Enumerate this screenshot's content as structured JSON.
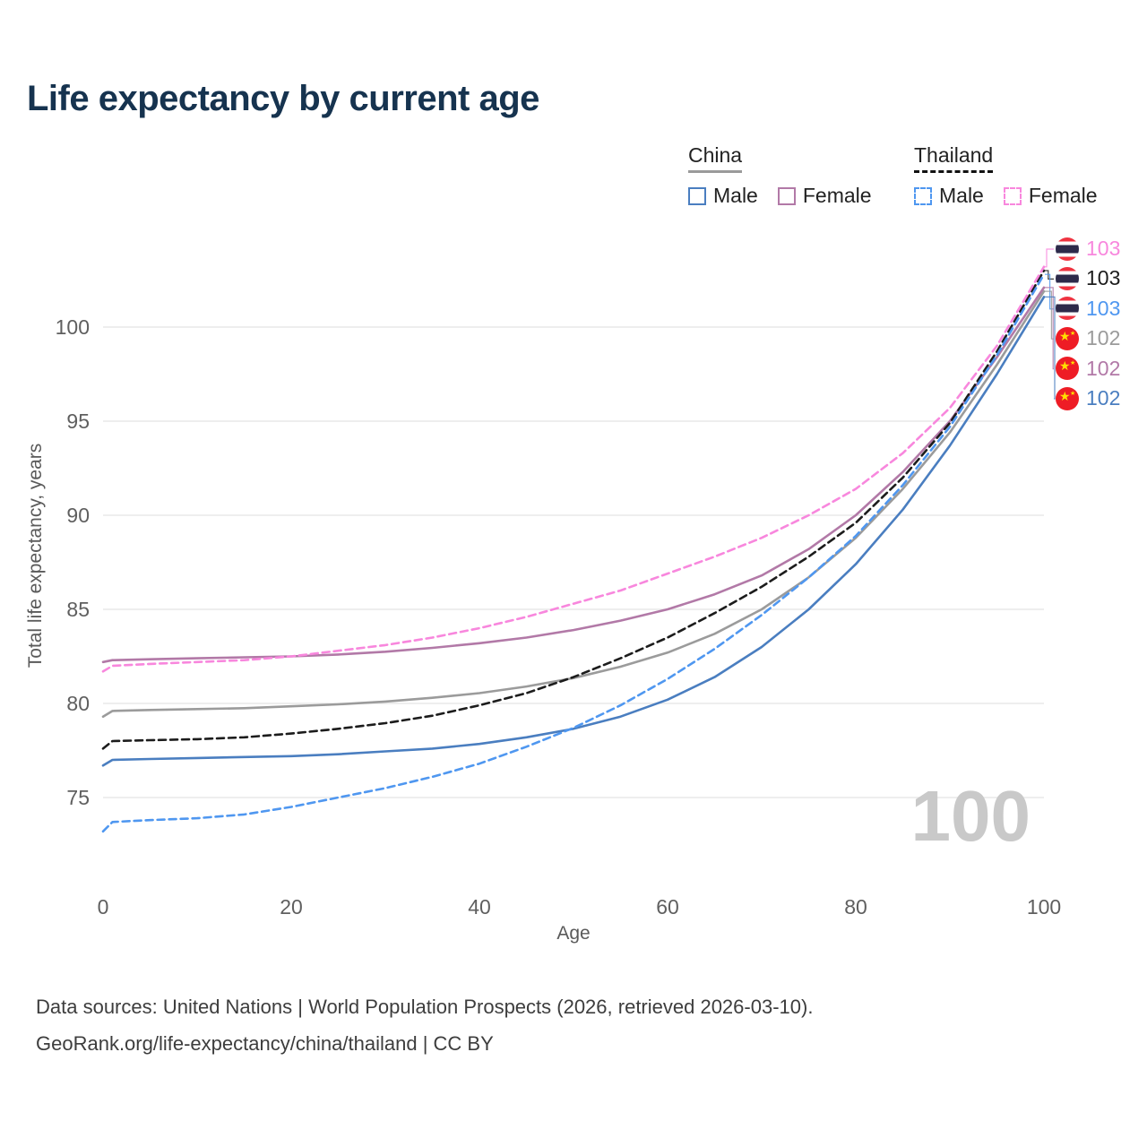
{
  "header": {
    "title": "Life expectancy by current age"
  },
  "legend": {
    "groups": [
      {
        "label": "China",
        "style": "solid",
        "indicator_color": "#9a9a9a",
        "items": [
          {
            "label": "Male",
            "color": "#4a7ec0"
          },
          {
            "label": "Female",
            "color": "#b279a7"
          }
        ]
      },
      {
        "label": "Thailand",
        "style": "dashed",
        "indicator_color": "#111111",
        "items": [
          {
            "label": "Male",
            "color": "#4f97f0"
          },
          {
            "label": "Female",
            "color": "#f887dd"
          }
        ]
      }
    ]
  },
  "chart_data": {
    "type": "line",
    "title": "Life expectancy by current age",
    "xlabel": "Age",
    "ylabel": "Total life expectancy, years",
    "xlim": [
      0,
      100
    ],
    "ylim": [
      73,
      103.5
    ],
    "x_ticks": [
      0,
      20,
      40,
      60,
      80,
      100
    ],
    "y_ticks": [
      75,
      80,
      85,
      90,
      95,
      100
    ],
    "grid": "horizontal",
    "legend_position": "top-right",
    "watermark": "100",
    "x": [
      0,
      1,
      5,
      10,
      15,
      20,
      25,
      30,
      35,
      40,
      45,
      50,
      55,
      60,
      65,
      70,
      75,
      80,
      85,
      90,
      95,
      100
    ],
    "series": [
      {
        "id": "china-total",
        "name": "China (both sexes)",
        "country": "China",
        "sex": "Both",
        "color": "#9b9b9b",
        "dash": false,
        "values": [
          79.3,
          79.6,
          79.65,
          79.7,
          79.75,
          79.85,
          79.95,
          80.1,
          80.3,
          80.55,
          80.9,
          81.35,
          81.95,
          82.7,
          83.7,
          85.0,
          86.7,
          88.8,
          91.4,
          94.4,
          98.0,
          101.9
        ]
      },
      {
        "id": "china-female",
        "name": "China Female",
        "country": "China",
        "sex": "Female",
        "color": "#b279a7",
        "dash": false,
        "values": [
          82.2,
          82.3,
          82.35,
          82.4,
          82.45,
          82.5,
          82.6,
          82.75,
          82.95,
          83.2,
          83.5,
          83.9,
          84.4,
          85.0,
          85.8,
          86.8,
          88.2,
          90.0,
          92.3,
          95.0,
          98.4,
          102.1
        ]
      },
      {
        "id": "china-male",
        "name": "China Male",
        "country": "China",
        "sex": "Male",
        "color": "#4a7ec0",
        "dash": false,
        "values": [
          76.7,
          77.0,
          77.05,
          77.1,
          77.15,
          77.2,
          77.3,
          77.45,
          77.6,
          77.85,
          78.2,
          78.65,
          79.3,
          80.2,
          81.4,
          83.0,
          85.0,
          87.4,
          90.3,
          93.7,
          97.5,
          101.6
        ]
      },
      {
        "id": "thailand-total",
        "name": "Thailand (both sexes)",
        "country": "Thailand",
        "sex": "Both",
        "color": "#1c1c1c",
        "dash": true,
        "values": [
          77.6,
          78.0,
          78.05,
          78.1,
          78.2,
          78.4,
          78.65,
          78.95,
          79.35,
          79.9,
          80.55,
          81.4,
          82.4,
          83.5,
          84.8,
          86.2,
          87.8,
          89.6,
          92.0,
          94.9,
          98.7,
          103.0
        ]
      },
      {
        "id": "thailand-male",
        "name": "Thailand Male",
        "country": "Thailand",
        "sex": "Male",
        "color": "#4f97f0",
        "dash": true,
        "values": [
          73.2,
          73.7,
          73.8,
          73.9,
          74.1,
          74.5,
          75.0,
          75.5,
          76.1,
          76.8,
          77.7,
          78.7,
          79.9,
          81.3,
          82.9,
          84.7,
          86.7,
          88.9,
          91.6,
          94.7,
          98.5,
          102.8
        ]
      },
      {
        "id": "thailand-female",
        "name": "Thailand Female",
        "country": "Thailand",
        "sex": "Female",
        "color": "#f887dd",
        "dash": true,
        "values": [
          81.7,
          82.0,
          82.1,
          82.2,
          82.3,
          82.5,
          82.8,
          83.1,
          83.5,
          84.0,
          84.6,
          85.3,
          86.0,
          86.9,
          87.8,
          88.8,
          90.0,
          91.4,
          93.3,
          95.7,
          99.0,
          103.2
        ]
      }
    ]
  },
  "end_labels": [
    {
      "value": "103",
      "color": "#f887dd",
      "flag": "thailand",
      "line_end": 103.2
    },
    {
      "value": "103",
      "color": "#1c1c1c",
      "flag": "thailand",
      "line_end": 103.0
    },
    {
      "value": "103",
      "color": "#4f97f0",
      "flag": "thailand",
      "line_end": 102.8
    },
    {
      "value": "102",
      "color": "#9b9b9b",
      "flag": "china",
      "line_end": 101.9
    },
    {
      "value": "102",
      "color": "#b279a7",
      "flag": "china",
      "line_end": 102.1
    },
    {
      "value": "102",
      "color": "#4a7ec0",
      "flag": "china",
      "line_end": 101.6
    }
  ],
  "footer": {
    "line1": "Data sources: United Nations | World Population Prospects (2026, retrieved 2026-03-10).",
    "line2": "GeoRank.org/life-expectancy/china/thailand | CC BY"
  }
}
